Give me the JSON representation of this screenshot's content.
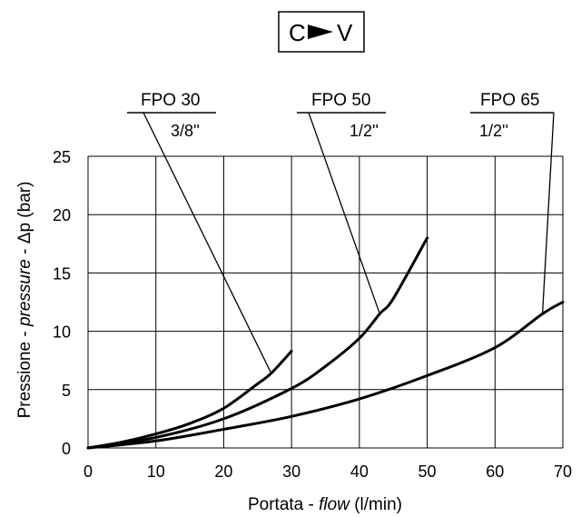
{
  "chart_data": {
    "type": "line",
    "title": {
      "left": "C",
      "icon": "right-pointing-triangle-icon",
      "right": "V"
    },
    "xlabel": {
      "parts": [
        {
          "text": "Portata - ",
          "italic": false
        },
        {
          "text": "flow",
          "italic": true
        },
        {
          "text": " (l/min)",
          "italic": false
        }
      ]
    },
    "ylabel": {
      "parts": [
        {
          "text": "Pressione - ",
          "italic": false
        },
        {
          "text": "pressure",
          "italic": true
        },
        {
          "text": " - Δp (bar)",
          "italic": false
        }
      ]
    },
    "xlim": [
      0,
      70
    ],
    "ylim": [
      0,
      25
    ],
    "x_ticks": [
      "0",
      "10",
      "20",
      "30",
      "40",
      "50",
      "60",
      "70"
    ],
    "y_ticks": [
      "0",
      "5",
      "10",
      "15",
      "20",
      "25"
    ],
    "grid": true,
    "series": [
      {
        "name": "FPO 30",
        "size": "3/8''",
        "color": "#000000",
        "x": [
          0,
          5,
          10,
          15,
          20,
          25,
          27,
          30
        ],
        "y": [
          0,
          0.5,
          1.2,
          2.1,
          3.4,
          5.5,
          6.4,
          8.3
        ]
      },
      {
        "name": "FPO 50",
        "size": "1/2''",
        "color": "#000000",
        "x": [
          0,
          10,
          20,
          30,
          35,
          40,
          43,
          45,
          50
        ],
        "y": [
          0,
          0.9,
          2.5,
          5.1,
          7,
          9.4,
          11.5,
          12.8,
          18
        ]
      },
      {
        "name": "FPO 65",
        "size": "1/2''",
        "color": "#000000",
        "x": [
          0,
          10,
          20,
          30,
          40,
          50,
          60,
          67,
          70
        ],
        "y": [
          0,
          0.6,
          1.6,
          2.7,
          4.2,
          6.2,
          8.6,
          11.5,
          12.5
        ]
      }
    ],
    "callouts": [
      {
        "series": "FPO 30",
        "leader_to": {
          "x": 27,
          "y": 6.4
        }
      },
      {
        "series": "FPO 50",
        "leader_to": {
          "x": 43,
          "y": 11.5
        }
      },
      {
        "series": "FPO 65",
        "leader_to": {
          "x": 67,
          "y": 11.5
        }
      }
    ]
  }
}
